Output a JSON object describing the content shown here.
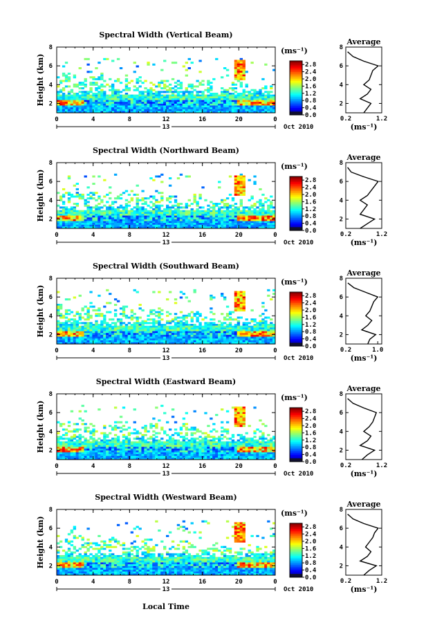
{
  "figure": {
    "bottom_label": "Local Time",
    "date_label": "Oct 2010",
    "day_label": "13",
    "colorbar_unit": "(ms⁻¹)",
    "average_title": "Average",
    "average_unit": "(ms⁻¹)",
    "y_label": "Height (km)"
  },
  "chart_data": [
    {
      "type": "heatmap",
      "title": "Spectral Width (Vertical Beam)",
      "xlabel": "",
      "ylabel": "Height (km)",
      "x_ticks": [
        "0",
        "4",
        "8",
        "12",
        "16",
        "20",
        "0"
      ],
      "xlim": [
        0,
        24
      ],
      "y_ticks": [
        "2",
        "4",
        "6",
        "8"
      ],
      "ylim": [
        1,
        8
      ],
      "colorbar_ticks": [
        "0.0",
        "0.4",
        "0.8",
        "1.2",
        "1.6",
        "2.0",
        "2.4",
        "2.8"
      ],
      "clim": [
        0,
        3.0
      ],
      "average_profile": {
        "xlim": [
          0.2,
          1.2
        ],
        "x_ticks": [
          "0.2",
          "1.2"
        ],
        "ylim": [
          1,
          8
        ],
        "y_ticks": [
          "2",
          "4",
          "6",
          "8"
        ],
        "height": [
          1.0,
          1.5,
          2.0,
          2.5,
          3.0,
          3.5,
          4.0,
          4.5,
          5.0,
          5.5,
          6.0,
          6.5,
          7.0,
          7.5
        ],
        "width": [
          0.7,
          0.8,
          0.9,
          0.6,
          0.8,
          0.9,
          0.7,
          0.85,
          0.9,
          0.95,
          1.1,
          0.7,
          0.4,
          0.25
        ]
      }
    },
    {
      "type": "heatmap",
      "title": "Spectral Width (Northward Beam)",
      "xlabel": "",
      "ylabel": "Height (km)",
      "x_ticks": [
        "0",
        "4",
        "8",
        "12",
        "16",
        "20",
        "0"
      ],
      "xlim": [
        0,
        24
      ],
      "y_ticks": [
        "2",
        "4",
        "6",
        "8"
      ],
      "ylim": [
        1,
        8
      ],
      "colorbar_ticks": [
        "0.0",
        "0.4",
        "0.8",
        "1.2",
        "1.6",
        "2.0",
        "2.4",
        "2.8"
      ],
      "clim": [
        0,
        3.0
      ],
      "average_profile": {
        "xlim": [
          0.2,
          1.2
        ],
        "x_ticks": [
          "0.2",
          "1.2"
        ],
        "ylim": [
          1,
          8
        ],
        "y_ticks": [
          "2",
          "4",
          "6",
          "8"
        ],
        "height": [
          1.0,
          1.5,
          2.0,
          2.5,
          3.0,
          3.5,
          4.0,
          4.5,
          5.0,
          5.5,
          6.0,
          6.5,
          7.0,
          7.5
        ],
        "width": [
          0.6,
          0.8,
          1.0,
          0.6,
          0.7,
          0.8,
          0.6,
          0.8,
          0.9,
          1.0,
          1.1,
          0.7,
          0.35,
          0.25
        ]
      }
    },
    {
      "type": "heatmap",
      "title": "Spectral Width (Southward Beam)",
      "xlabel": "",
      "ylabel": "Height (km)",
      "x_ticks": [
        "0",
        "4",
        "8",
        "12",
        "16",
        "20",
        "0"
      ],
      "xlim": [
        0,
        24
      ],
      "y_ticks": [
        "2",
        "4",
        "6",
        "8"
      ],
      "ylim": [
        1,
        8
      ],
      "colorbar_ticks": [
        "0.0",
        "0.4",
        "0.8",
        "1.2",
        "1.6",
        "2.0",
        "2.4",
        "2.8"
      ],
      "clim": [
        0,
        3.0
      ],
      "average_profile": {
        "xlim": [
          0.2,
          1.1
        ],
        "x_ticks": [
          "0.2",
          "1.0"
        ],
        "ylim": [
          1,
          8
        ],
        "y_ticks": [
          "2",
          "4",
          "6",
          "8"
        ],
        "height": [
          1.0,
          1.5,
          2.0,
          2.5,
          3.0,
          3.5,
          4.0,
          4.5,
          5.0,
          5.5,
          6.0,
          6.5,
          7.0,
          7.5
        ],
        "width": [
          0.75,
          0.8,
          0.95,
          0.6,
          0.75,
          0.85,
          0.7,
          0.8,
          0.85,
          0.9,
          1.0,
          0.7,
          0.4,
          0.25
        ]
      }
    },
    {
      "type": "heatmap",
      "title": "Spectral Width (Eastward Beam)",
      "xlabel": "",
      "ylabel": "Height (km)",
      "x_ticks": [
        "0",
        "4",
        "8",
        "12",
        "16",
        "20",
        "0"
      ],
      "xlim": [
        0,
        24
      ],
      "y_ticks": [
        "2",
        "4",
        "6",
        "8"
      ],
      "ylim": [
        1,
        8
      ],
      "colorbar_ticks": [
        "0.0",
        "0.4",
        "0.8",
        "1.2",
        "1.6",
        "2.0",
        "2.4",
        "2.8"
      ],
      "clim": [
        0,
        3.0
      ],
      "average_profile": {
        "xlim": [
          0.2,
          1.2
        ],
        "x_ticks": [
          "0.2",
          "1.2"
        ],
        "ylim": [
          1,
          8
        ],
        "y_ticks": [
          "2",
          "4",
          "6",
          "8"
        ],
        "height": [
          1.0,
          1.5,
          2.0,
          2.5,
          3.0,
          3.5,
          4.0,
          4.5,
          5.0,
          5.5,
          6.0,
          6.5,
          7.0,
          7.5
        ],
        "width": [
          0.65,
          0.8,
          1.0,
          0.6,
          0.8,
          0.9,
          0.7,
          0.85,
          0.95,
          1.0,
          1.05,
          0.7,
          0.4,
          0.25
        ]
      }
    },
    {
      "type": "heatmap",
      "title": "Spectral Width (Westward Beam)",
      "xlabel": "Local Time",
      "ylabel": "Height (km)",
      "x_ticks": [
        "0",
        "4",
        "8",
        "12",
        "16",
        "20",
        "0"
      ],
      "xlim": [
        0,
        24
      ],
      "y_ticks": [
        "2",
        "4",
        "6",
        "8"
      ],
      "ylim": [
        1,
        8
      ],
      "colorbar_ticks": [
        "0.0",
        "0.4",
        "0.8",
        "1.2",
        "1.6",
        "2.0",
        "2.4",
        "2.8"
      ],
      "clim": [
        0,
        3.0
      ],
      "average_profile": {
        "xlim": [
          0.2,
          1.2
        ],
        "x_ticks": [
          "0.2",
          "1.2"
        ],
        "ylim": [
          1,
          8
        ],
        "y_ticks": [
          "2",
          "4",
          "6",
          "8"
        ],
        "height": [
          1.0,
          1.5,
          2.0,
          2.5,
          3.0,
          3.5,
          4.0,
          4.5,
          5.0,
          5.5,
          6.0,
          6.5,
          7.0,
          7.5
        ],
        "width": [
          0.7,
          0.85,
          1.05,
          0.6,
          0.8,
          0.9,
          0.75,
          0.85,
          0.95,
          1.0,
          1.1,
          0.7,
          0.4,
          0.25
        ]
      }
    }
  ]
}
